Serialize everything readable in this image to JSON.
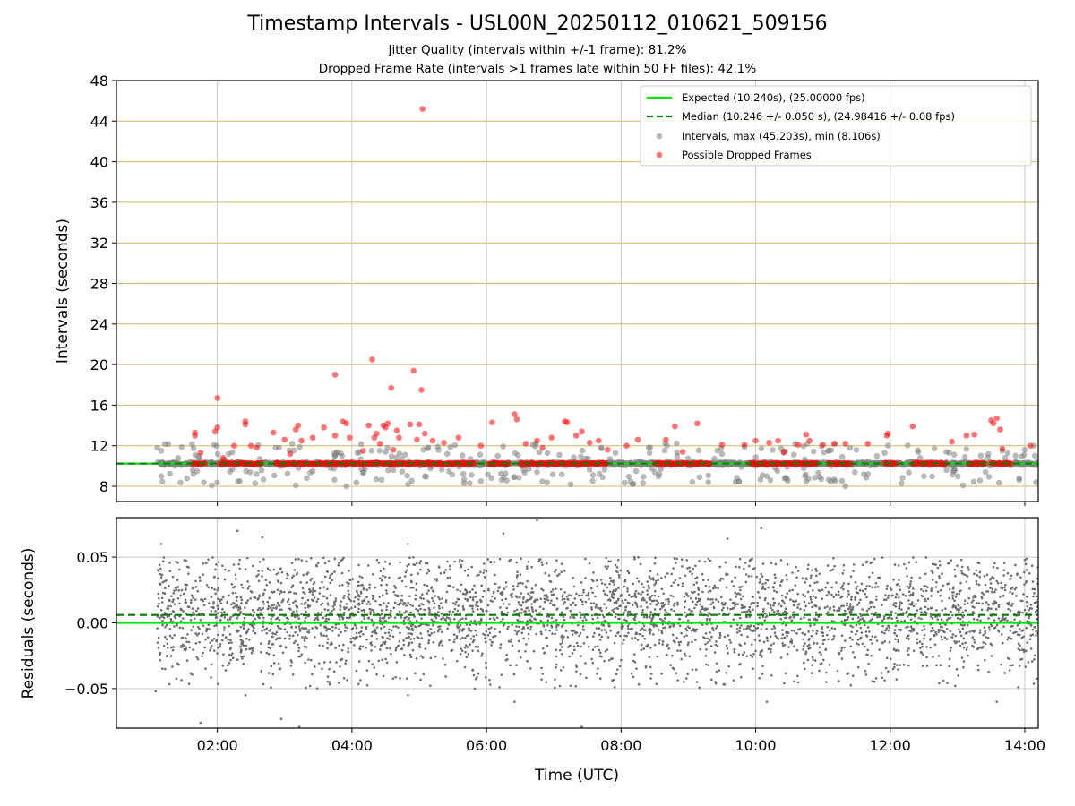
{
  "chart": {
    "title": "Timestamp Intervals - USL00N_20250112_010621_509156",
    "subtitle1": "Jitter Quality (intervals within +/-1 frame): 81.2%",
    "subtitle2": "Dropped Frame Rate (intervals >1 frames late within 50 FF files): 42.1%"
  },
  "colors": {
    "expected": "#00e600",
    "median": "#008000",
    "intervals": "#808080",
    "dropped": "#ff0000",
    "hgrid_top": "#d4b46a",
    "grid": "#c8c8c8",
    "residual_points": "#6e6e6e"
  },
  "chart_data": [
    {
      "type": "scatter",
      "title": "Timestamp Intervals - USL00N_20250112_010621_509156",
      "xlabel": "",
      "ylabel": "Intervals (seconds)",
      "xlim": [
        "00:30",
        "14:12"
      ],
      "ylim": [
        6.5,
        48
      ],
      "yticks": [
        8,
        12,
        16,
        20,
        24,
        28,
        32,
        36,
        40,
        44,
        48
      ],
      "xticks": [
        "02:00",
        "04:00",
        "06:00",
        "08:00",
        "10:00",
        "12:00",
        "14:00"
      ],
      "grid": "on",
      "legend_position": "top-right",
      "lines": [
        {
          "name": "Expected (10.240s), (25.00000 fps)",
          "y": 10.24,
          "style": "solid"
        },
        {
          "name": "Median (10.246 +/- 0.050 s), (24.98416 +/- 0.08 fps)",
          "y": 10.246,
          "style": "dashed"
        }
      ],
      "series": [
        {
          "name": "Intervals, max (45.203s), min (8.106s)",
          "x_range": [
            "01:06",
            "14:12"
          ],
          "baseline": 10.24,
          "points": [
            [
              "01:10",
              11.5
            ],
            [
              "01:10",
              9.0
            ],
            [
              "01:25",
              10.8
            ],
            [
              "01:38",
              9.6
            ],
            [
              "01:55",
              8.1
            ],
            [
              "02:10",
              11.2
            ],
            [
              "02:20",
              8.5
            ],
            [
              "02:35",
              9.2
            ],
            [
              "02:55",
              11.8
            ],
            [
              "03:10",
              8.1
            ],
            [
              "03:25",
              9.5
            ],
            [
              "03:45",
              11.0
            ],
            [
              "03:55",
              8.0
            ],
            [
              "04:10",
              9.3
            ],
            [
              "04:30",
              11.4
            ],
            [
              "04:50",
              8.2
            ],
            [
              "05:05",
              9.0
            ],
            [
              "05:25",
              11.2
            ],
            [
              "05:40",
              8.3
            ],
            [
              "05:55",
              8.5
            ],
            [
              "06:10",
              11.0
            ],
            [
              "06:25",
              8.9
            ],
            [
              "06:45",
              9.4
            ],
            [
              "07:05",
              11.1
            ],
            [
              "07:15",
              8.2
            ],
            [
              "07:35",
              9.1
            ],
            [
              "07:55",
              11.3
            ],
            [
              "08:10",
              8.2
            ],
            [
              "08:30",
              9.4
            ],
            [
              "08:50",
              11.0
            ],
            [
              "09:10",
              8.9
            ],
            [
              "09:30",
              11.2
            ],
            [
              "09:45",
              8.5
            ],
            [
              "10:10",
              9.0
            ],
            [
              "10:25",
              11.3
            ],
            [
              "10:45",
              8.5
            ],
            [
              "11:05",
              11.5
            ],
            [
              "11:20",
              8.0
            ],
            [
              "11:40",
              9.2
            ],
            [
              "11:55",
              11.3
            ],
            [
              "12:10",
              8.3
            ],
            [
              "12:30",
              9.0
            ],
            [
              "12:50",
              11.4
            ],
            [
              "13:05",
              8.1
            ],
            [
              "13:25",
              9.4
            ],
            [
              "13:40",
              11.5
            ],
            [
              "13:55",
              8.8
            ],
            [
              "14:10",
              8.4
            ],
            [
              "14:00",
              11.6
            ]
          ]
        },
        {
          "name": "Possible Dropped Frames",
          "points": [
            [
              "01:40",
              13.3
            ],
            [
              "01:40",
              13.0
            ],
            [
              "01:45",
              11.3
            ],
            [
              "02:00",
              16.7
            ],
            [
              "02:00",
              13.8
            ],
            [
              "01:58",
              13.4
            ],
            [
              "02:05",
              10.8
            ],
            [
              "02:15",
              12.0
            ],
            [
              "02:25",
              14.4
            ],
            [
              "02:25",
              14.1
            ],
            [
              "02:30",
              12.0
            ],
            [
              "02:35",
              11.8
            ],
            [
              "02:50",
              13.3
            ],
            [
              "03:00",
              12.6
            ],
            [
              "03:05",
              11.2
            ],
            [
              "03:10",
              13.6
            ],
            [
              "03:12",
              14.0
            ],
            [
              "03:15",
              12.5
            ],
            [
              "03:25",
              12.8
            ],
            [
              "03:35",
              13.8
            ],
            [
              "03:45",
              19.0
            ],
            [
              "03:45",
              13.0
            ],
            [
              "03:52",
              14.4
            ],
            [
              "03:55",
              14.2
            ],
            [
              "03:58",
              12.8
            ],
            [
              "04:10",
              11.5
            ],
            [
              "04:15",
              14.0
            ],
            [
              "04:18",
              20.5
            ],
            [
              "04:20",
              12.8
            ],
            [
              "04:22",
              13.2
            ],
            [
              "04:25",
              12.2
            ],
            [
              "04:28",
              14.0
            ],
            [
              "04:30",
              13.8
            ],
            [
              "04:32",
              14.2
            ],
            [
              "04:35",
              17.7
            ],
            [
              "04:37",
              11.6
            ],
            [
              "04:40",
              13.5
            ],
            [
              "04:42",
              12.8
            ],
            [
              "04:52",
              14.1
            ],
            [
              "04:55",
              19.4
            ],
            [
              "04:58",
              12.6
            ],
            [
              "05:00",
              14.1
            ],
            [
              "05:02",
              17.5
            ],
            [
              "05:03",
              45.2
            ],
            [
              "05:05",
              13.2
            ],
            [
              "05:12",
              12.5
            ],
            [
              "05:22",
              12.3
            ],
            [
              "05:35",
              12.8
            ],
            [
              "05:55",
              12.0
            ],
            [
              "06:05",
              14.3
            ],
            [
              "06:25",
              15.1
            ],
            [
              "06:27",
              14.6
            ],
            [
              "06:35",
              12.2
            ],
            [
              "06:45",
              12.5
            ],
            [
              "06:50",
              11.8
            ],
            [
              "06:58",
              12.8
            ],
            [
              "07:10",
              14.4
            ],
            [
              "07:12",
              14.3
            ],
            [
              "07:20",
              13.0
            ],
            [
              "07:25",
              13.4
            ],
            [
              "07:32",
              12.3
            ],
            [
              "07:40",
              12.5
            ],
            [
              "07:48",
              11.6
            ],
            [
              "08:05",
              12.0
            ],
            [
              "08:15",
              12.6
            ],
            [
              "08:40",
              12.6
            ],
            [
              "08:48",
              13.9
            ],
            [
              "08:55",
              11.4
            ],
            [
              "09:08",
              14.2
            ],
            [
              "09:30",
              12.1
            ],
            [
              "09:50",
              12.1
            ],
            [
              "10:00",
              12.5
            ],
            [
              "10:12",
              12.3
            ],
            [
              "10:20",
              12.5
            ],
            [
              "10:25",
              11.4
            ],
            [
              "10:38",
              12.1
            ],
            [
              "10:45",
              13.1
            ],
            [
              "10:48",
              12.5
            ],
            [
              "11:00",
              12.1
            ],
            [
              "11:10",
              12.2
            ],
            [
              "11:20",
              12.2
            ],
            [
              "11:40",
              12.2
            ],
            [
              "11:58",
              13.2
            ],
            [
              "11:57",
              13.0
            ],
            [
              "12:20",
              13.9
            ],
            [
              "12:55",
              12.4
            ],
            [
              "13:08",
              13.0
            ],
            [
              "13:15",
              13.1
            ],
            [
              "13:30",
              14.5
            ],
            [
              "13:32",
              14.2
            ],
            [
              "13:35",
              14.7
            ],
            [
              "13:38",
              13.6
            ],
            [
              "13:40",
              11.7
            ],
            [
              "14:05",
              12.0
            ]
          ]
        }
      ]
    },
    {
      "type": "scatter",
      "title": "",
      "xlabel": "Time (UTC)",
      "ylabel": "Residuals (seconds)",
      "xlim": [
        "00:30",
        "14:12"
      ],
      "ylim": [
        -0.08,
        0.08
      ],
      "yticks": [
        -0.05,
        0.0,
        0.05
      ],
      "ytick_labels": [
        "−0.05",
        "0.00",
        "0.05"
      ],
      "xticks": [
        "02:00",
        "04:00",
        "06:00",
        "08:00",
        "10:00",
        "12:00",
        "14:00"
      ],
      "grid": "on",
      "lines": [
        {
          "name": "expected",
          "y": 0.0,
          "style": "solid"
        },
        {
          "name": "median",
          "y": 0.006,
          "style": "dashed"
        }
      ],
      "series": [
        {
          "name": "residuals",
          "x_range": [
            "01:06",
            "14:12"
          ],
          "center": 0.006,
          "spread": 0.022,
          "outliers": [
            [
              "01:05",
              -0.052
            ],
            [
              "01:10",
              0.06
            ],
            [
              "02:18",
              0.07
            ],
            [
              "02:40",
              0.065
            ],
            [
              "02:25",
              -0.055
            ],
            [
              "03:40",
              -0.045
            ],
            [
              "04:50",
              0.06
            ],
            [
              "04:50",
              -0.055
            ],
            [
              "06:15",
              0.068
            ],
            [
              "06:45",
              0.078
            ],
            [
              "06:25",
              -0.06
            ],
            [
              "09:35",
              0.064
            ],
            [
              "10:05",
              0.072
            ],
            [
              "10:10",
              -0.06
            ],
            [
              "13:35",
              -0.06
            ],
            [
              "07:25",
              -0.079
            ],
            [
              "01:45",
              -0.076
            ],
            [
              "02:57",
              -0.073
            ],
            [
              "03:13",
              -0.079
            ]
          ]
        }
      ]
    }
  ]
}
